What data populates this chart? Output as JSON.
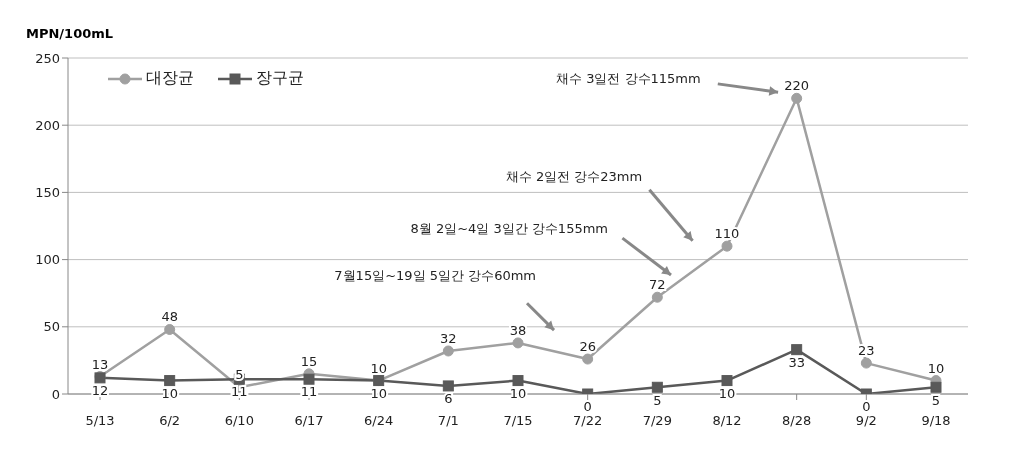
{
  "chart_data": {
    "type": "line",
    "ylabel": "MPN/100mL",
    "categories": [
      "5/13",
      "6/2",
      "6/10",
      "6/17",
      "6/24",
      "7/1",
      "7/15",
      "7/22",
      "7/29",
      "8/12",
      "8/28",
      "9/2",
      "9/18"
    ],
    "series": [
      {
        "name": "대장균",
        "color": "#a0a0a0",
        "marker": "circle",
        "values": [
          13,
          48,
          5,
          15,
          10,
          32,
          38,
          26,
          72,
          110,
          220,
          23,
          10
        ]
      },
      {
        "name": "장구균",
        "color": "#595959",
        "marker": "square",
        "values": [
          12,
          10,
          11,
          11,
          10,
          6,
          10,
          0,
          5,
          10,
          33,
          0,
          5
        ]
      }
    ],
    "ylim": [
      0,
      250
    ],
    "yticks": [
      0,
      50,
      100,
      150,
      200,
      250
    ],
    "grid": "y",
    "legend": "top left",
    "data_labels": true,
    "annotations": [
      "7월15일~19일 5일간 강수60mm",
      "8월 2일~4일 3일간 강수155mm",
      "채수 2일전 강수23mm",
      "채수 3일전 강수115mm"
    ]
  }
}
